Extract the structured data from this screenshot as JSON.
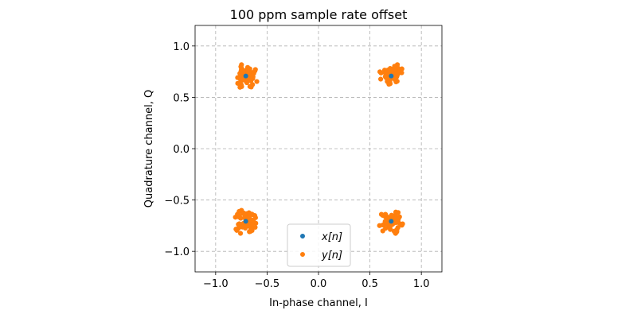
{
  "chart_data": {
    "type": "scatter",
    "title": "100 ppm sample rate offset",
    "xlabel": "In-phase channel, I",
    "ylabel": "Quadrature channel, Q",
    "xlim": [
      -1.2,
      1.2
    ],
    "ylim": [
      -1.2,
      1.2
    ],
    "xticks": [
      -1.0,
      -0.5,
      0.0,
      0.5,
      1.0
    ],
    "yticks": [
      -1.0,
      -0.5,
      0.0,
      0.5,
      1.0
    ],
    "xtick_labels": [
      "−1.0",
      "−0.5",
      "0.0",
      "0.5",
      "1.0"
    ],
    "ytick_labels": [
      "−1.0",
      "−0.5",
      "0.0",
      "0.5",
      "1.0"
    ],
    "grid": true,
    "legend_position": "lower-center",
    "series": [
      {
        "name": "x[n]",
        "label_text": "x[n]",
        "color": "#1f77b4",
        "points": [
          [
            0.707,
            0.707
          ],
          [
            -0.707,
            0.707
          ],
          [
            -0.707,
            -0.707
          ],
          [
            0.707,
            -0.707
          ]
        ]
      },
      {
        "name": "y[n]",
        "label_text": "y[n]",
        "color": "#ff7f0e",
        "cluster_centers": [
          [
            0.707,
            0.707
          ],
          [
            -0.707,
            0.707
          ],
          [
            -0.707,
            -0.707
          ],
          [
            0.707,
            -0.707
          ]
        ],
        "cluster_spread": 0.08,
        "points_per_cluster": 60
      }
    ]
  }
}
